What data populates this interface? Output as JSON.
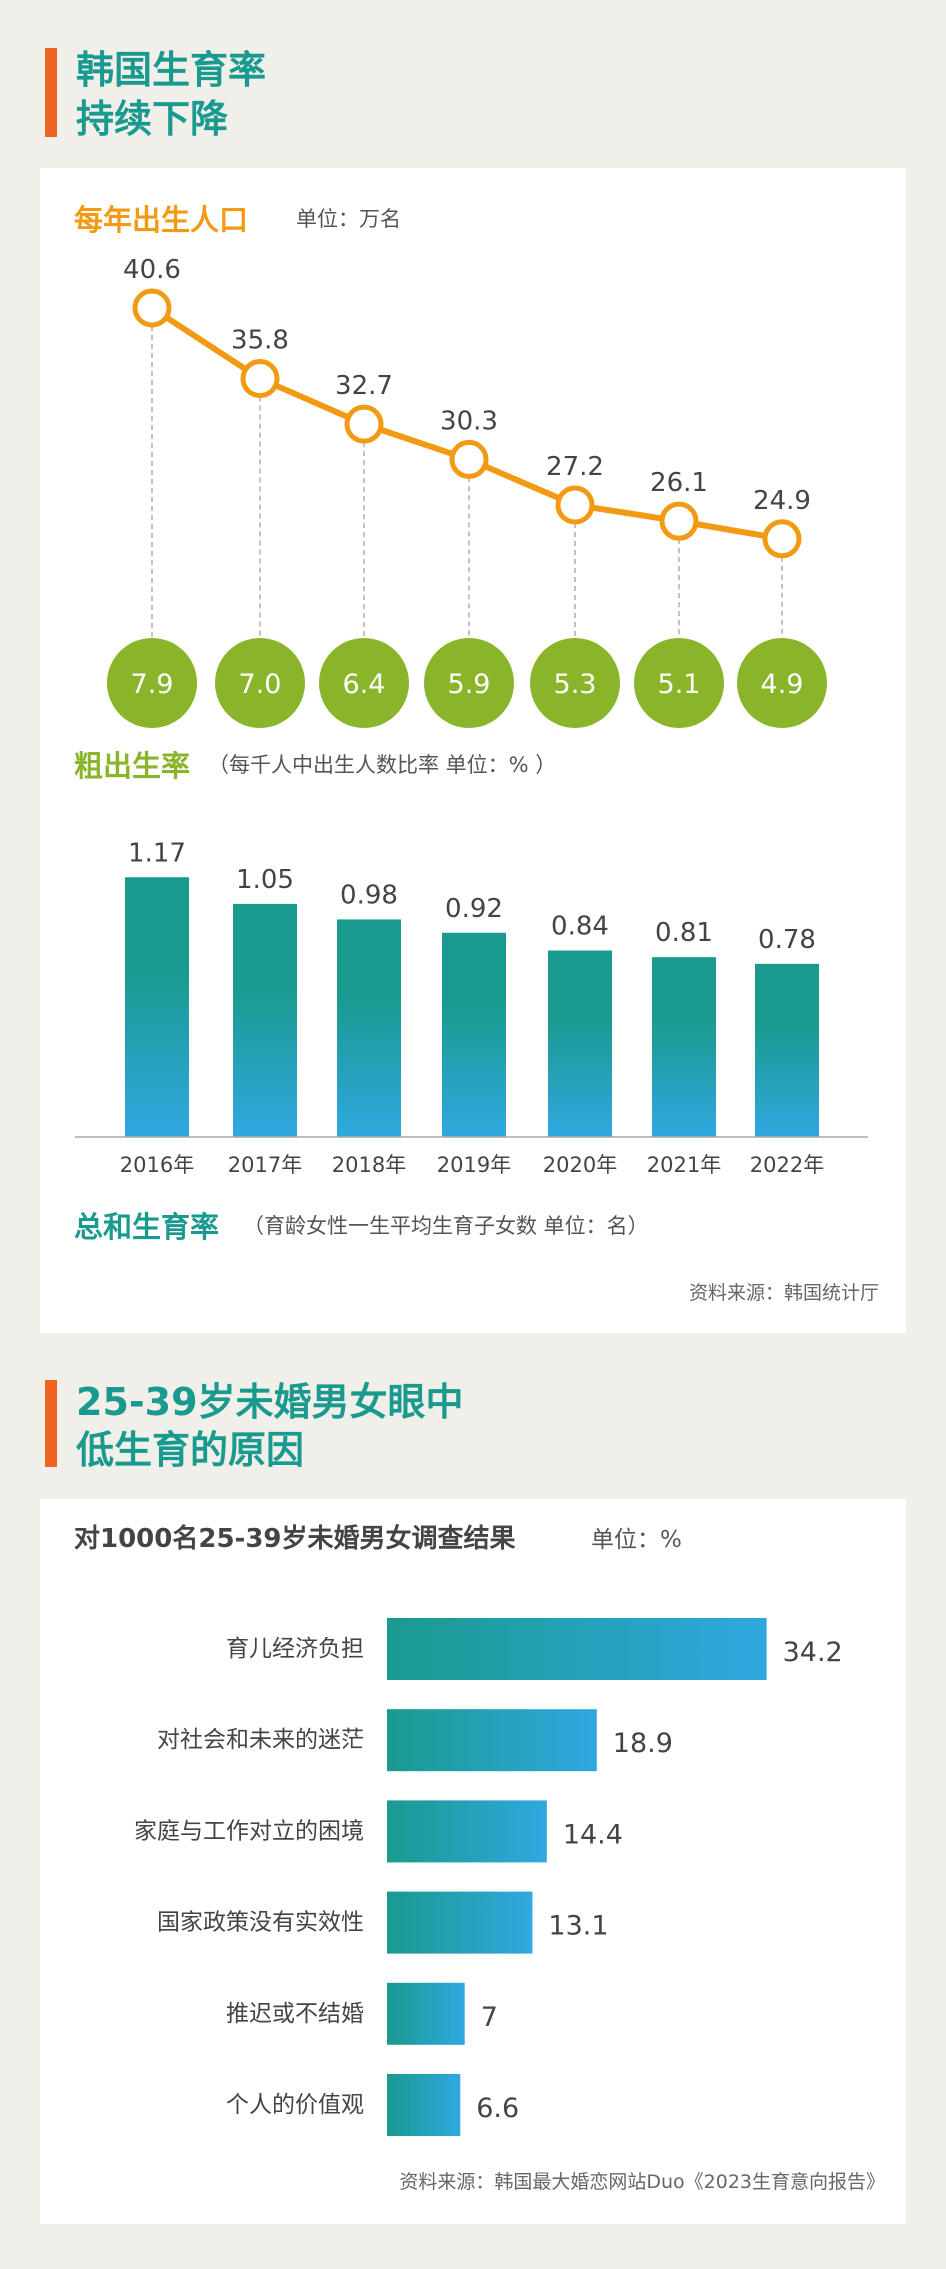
{
  "section1": {
    "title_line1": "韩国生育率",
    "title_line2": "持续下降",
    "births_title": "每年出生人口",
    "births_unit": "单位：万名",
    "crude_title": "粗出生率",
    "crude_unit": "（每千人中出生人数比率 单位：% ）",
    "tfr_title": "总和生育率",
    "tfr_unit": "（育龄女性一生平均生育子女数  单位：名）",
    "source": "资料来源：韩国统计厅"
  },
  "section2": {
    "title_line1": "25-39岁未婚男女眼中",
    "title_line2": "低生育的原因",
    "survey_title": "对1000名25-39岁未婚男女调查结果",
    "survey_unit": "单位：%",
    "source": "资料来源：韩国最大婚恋网站Duo《2023生育意向报告》"
  },
  "colors": {
    "title": "#1a9a8f",
    "accent": "#f0621f",
    "births_line": "#f29a14",
    "crude_circle": "#8ab52b",
    "bar_top": "#1a9a8f",
    "bar_bottom": "#2fa8e0"
  },
  "chart_data": [
    {
      "type": "line",
      "title": "每年出生人口",
      "unit": "万名",
      "categories": [
        "2016年",
        "2017年",
        "2018年",
        "2019年",
        "2020年",
        "2021年",
        "2022年"
      ],
      "values": [
        40.6,
        35.8,
        32.7,
        30.3,
        27.2,
        26.1,
        24.9
      ]
    },
    {
      "type": "table",
      "title": "粗出生率",
      "unit": "%",
      "categories": [
        "2016年",
        "2017年",
        "2018年",
        "2019年",
        "2020年",
        "2021年",
        "2022年"
      ],
      "values": [
        "7.9",
        "7.0",
        "6.4",
        "5.9",
        "5.3",
        "5.1",
        "4.9"
      ]
    },
    {
      "type": "bar",
      "title": "总和生育率",
      "unit": "名",
      "categories": [
        "2016年",
        "2017年",
        "2018年",
        "2019年",
        "2020年",
        "2021年",
        "2022年"
      ],
      "values": [
        1.17,
        1.05,
        0.98,
        0.92,
        0.84,
        0.81,
        0.78
      ],
      "labels": [
        "1.17",
        "1.05",
        "0.98",
        "0.92",
        "0.84",
        "0.81",
        "0.78"
      ]
    },
    {
      "type": "bar",
      "orientation": "horizontal",
      "title": "对1000名25-39岁未婚男女调查结果",
      "unit": "%",
      "categories": [
        "育儿经济负担",
        "对社会和未来的迷茫",
        "家庭与工作对立的困境",
        "国家政策没有实效性",
        "推迟或不结婚",
        "个人的价值观"
      ],
      "values": [
        34.2,
        18.9,
        14.4,
        13.1,
        7,
        6.6
      ],
      "labels": [
        "34.2",
        "18.9",
        "14.4",
        "13.1",
        "7",
        "6.6"
      ]
    }
  ]
}
